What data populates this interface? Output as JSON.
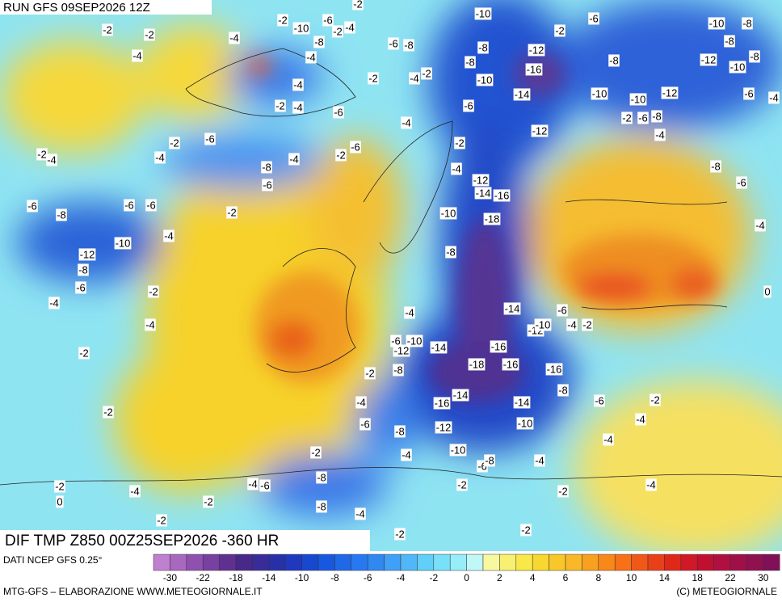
{
  "header": {
    "run": "RUN GFS 09SEP2026 12Z"
  },
  "footer": {
    "title": "DIF TMP Z850 00Z25SEP2026 -360 HR",
    "source": "DATI NCEP GFS 0.25°",
    "credit": "MTG-GFS – ELABORAZIONE WWW.METEOGIORNALE.IT",
    "copyright": "(C) METEOGIORNALE"
  },
  "colorbar": {
    "labels": [
      -30,
      -22,
      -18,
      -14,
      -10,
      -8,
      -6,
      -4,
      -2,
      0,
      2,
      4,
      6,
      8,
      10,
      14,
      18,
      22,
      30
    ]
  },
  "contour_labels": [
    -2,
    -2,
    -4,
    -2,
    -10,
    -6,
    -2,
    -4,
    -8,
    -4,
    -2,
    -10,
    -6,
    -10,
    -8,
    -2,
    -6,
    -8,
    -8,
    -12,
    -8,
    -8,
    -12,
    -8,
    -8,
    -10,
    -4,
    -2,
    -4,
    -2,
    -10,
    -16,
    -4,
    -2,
    -4,
    -6,
    -14,
    -10,
    -10,
    -12,
    -6,
    -4,
    -6,
    -2,
    -6,
    -8,
    -4,
    -12,
    -4,
    -2,
    -6,
    -2,
    -2,
    -4,
    -4,
    -6,
    -2,
    -4,
    -8,
    -4,
    -8,
    -12,
    -6,
    -6,
    -14,
    -16,
    -6,
    -8,
    -6,
    -6,
    -2,
    -10,
    -18,
    -4,
    -4,
    -10,
    -8,
    -12,
    -8,
    -6,
    -2,
    0,
    -4,
    -14,
    -6,
    -4,
    -4,
    -12,
    -10,
    -4,
    -2,
    -6,
    -10,
    -12,
    -14,
    -16,
    -2,
    -18,
    -16,
    -16,
    -2,
    -8,
    -8,
    -2,
    -4,
    -16,
    -14,
    -14,
    -6,
    -2,
    -4,
    -6,
    -8,
    -12,
    -10,
    -4,
    -2,
    -10,
    -4,
    -6,
    -8,
    -4,
    -8,
    -4,
    -6,
    -2,
    -2,
    -4,
    -4,
    -2,
    0,
    -2,
    -8,
    -4,
    -2,
    -2,
    -2
  ]
}
